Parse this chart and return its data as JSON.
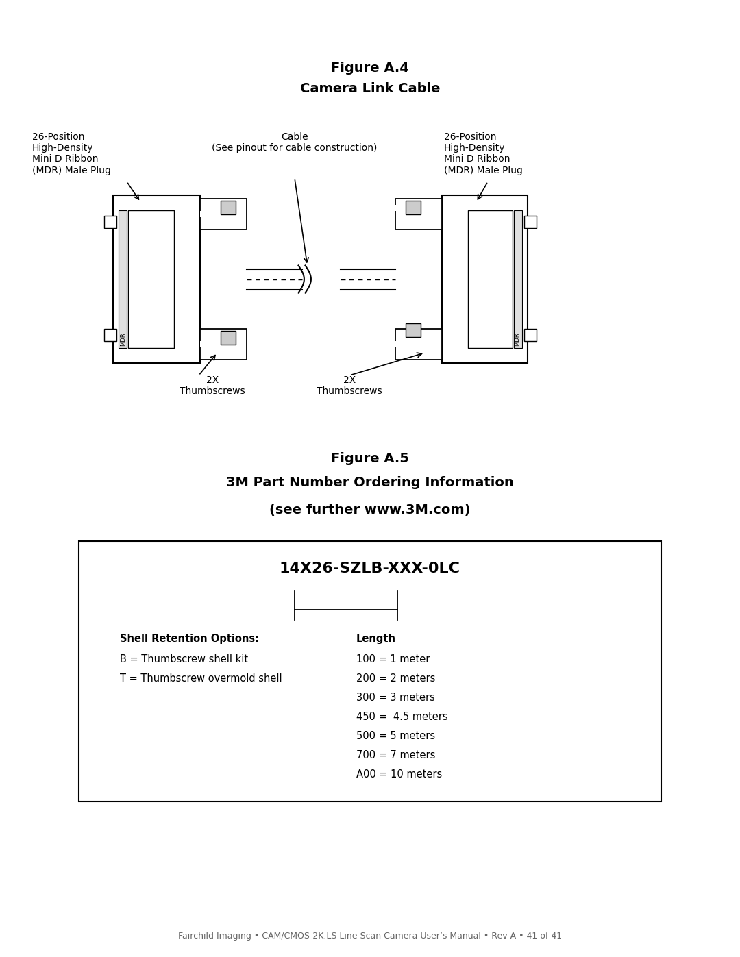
{
  "fig_width": 10.8,
  "fig_height": 13.97,
  "dpi": 100,
  "bg_color": "#ffffff",
  "figure_a4_title": "Figure A.4",
  "figure_a4_subtitle": "Camera Link Cable",
  "figure_a5_title": "Figure A.5",
  "figure_a5_subtitle": "3M Part Number Ordering Information",
  "figure_a5_sub2": "(see further www.3M.com)",
  "footer": "Fairchild Imaging • CAM/CMOS-2K.LS Line Scan Camera User’s Manual • Rev A • 41 of 41",
  "label_left": "26-Position\nHigh-Density\nMini D Ribbon\n(MDR) Male Plug",
  "label_right": "26-Position\nHigh-Density\nMini D Ribbon\n(MDR) Male Plug",
  "label_cable": "Cable\n(See pinout for cable construction)",
  "label_thumbscrew_left": "2X\nThumbscrews",
  "label_thumbscrew_right": "2X\nThumbscrews",
  "part_number": "14X26-SZLB-XXX-0LC",
  "shell_title": "Shell Retention Options:",
  "shell_line1": "B = Thumbscrew shell kit",
  "shell_line2": "T = Thumbscrew overmold shell",
  "length_title": "Length",
  "length_lines": [
    "100 = 1 meter",
    "200 = 2 meters",
    "300 = 3 meters",
    "450 =  4.5 meters",
    "500 = 5 meters",
    "700 = 7 meters",
    "A00 = 10 meters"
  ]
}
